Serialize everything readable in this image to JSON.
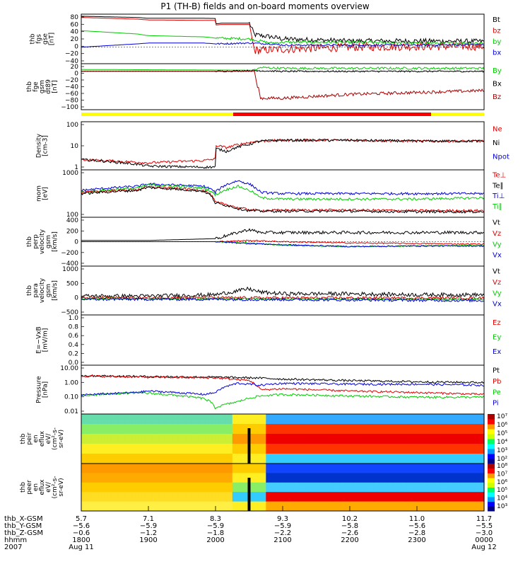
{
  "title": "P1 (TH-B) fields and on-board moments overview",
  "time_axis": {
    "range": [
      1800,
      2400
    ],
    "ticks": [
      1800,
      1900,
      2000,
      2100,
      2200,
      2300,
      2400
    ],
    "rows": [
      {
        "label": "thb_X-GSM",
        "values": [
          "5.7",
          "7.1",
          "8.3",
          "9.3",
          "10.2",
          "11.0",
          "11.7"
        ]
      },
      {
        "label": "thb_Y-GSM",
        "values": [
          "−5.6",
          "−5.9",
          "−5.9",
          "−5.9",
          "−5.8",
          "−5.6",
          "−5.5"
        ]
      },
      {
        "label": "thb_Z-GSM",
        "values": [
          "−0.6",
          "−1.2",
          "−1.8",
          "−2.2",
          "−2.6",
          "−2.8",
          "−3.0"
        ]
      },
      {
        "label": "hhmm",
        "values": [
          "1800",
          "1900",
          "2000",
          "2100",
          "2200",
          "2300",
          "0000"
        ]
      },
      {
        "label": "2007",
        "values": [
          "Aug 11",
          "",
          "",
          "",
          "",
          "",
          "Aug 12"
        ]
      }
    ]
  },
  "colors": {
    "black": "#000000",
    "red": "#e00000",
    "green": "#00cc00",
    "blue": "#0000dd",
    "darkred": "#aa0000",
    "yellow": "#ffff00"
  },
  "chart_data": [
    {
      "type": "line",
      "id": "fgs",
      "ylabel": [
        "thb",
        "fgs",
        "gse",
        "[nT]"
      ],
      "ylim": [
        -40,
        80
      ],
      "ticks": [
        "80",
        "60",
        "40",
        "20",
        "0",
        "−20",
        "−40"
      ],
      "legend": [
        {
          "name": "Bt",
          "color": "#000000"
        },
        {
          "name": "bz",
          "color": "#e00000"
        },
        {
          "name": "by",
          "color": "#00cc00"
        },
        {
          "name": "bx",
          "color": "#0000dd"
        }
      ],
      "series": [
        {
          "name": "Bt",
          "color": "#000000",
          "x": [
            1800,
            1850,
            1900,
            1950,
            1995,
            2005,
            2030,
            2035,
            2050,
            2100,
            2200,
            2300,
            2400
          ],
          "y": [
            75,
            72,
            70,
            70,
            68,
            58,
            58,
            30,
            25,
            20,
            15,
            15,
            14
          ],
          "noise": 6,
          "noise_from": 2030
        },
        {
          "name": "bz",
          "color": "#e00000",
          "x": [
            1800,
            1850,
            1900,
            1950,
            1995,
            2005,
            2030,
            2035,
            2100,
            2200,
            2300,
            2400
          ],
          "y": [
            72,
            68,
            66,
            65,
            64,
            55,
            55,
            -8,
            -5,
            0,
            2,
            2
          ],
          "noise": 10,
          "noise_from": 2035
        },
        {
          "name": "by",
          "color": "#00cc00",
          "x": [
            1800,
            1850,
            1900,
            1950,
            2000,
            2030,
            2050,
            2100,
            2200,
            2300,
            2400
          ],
          "y": [
            40,
            32,
            28,
            25,
            22,
            20,
            10,
            12,
            12,
            10,
            10
          ],
          "noise": 3,
          "noise_from": 2000
        },
        {
          "name": "bx",
          "color": "#0000dd",
          "x": [
            1800,
            1850,
            1900,
            1950,
            2000,
            2030,
            2050,
            2100,
            2200,
            2300,
            2400
          ],
          "y": [
            0,
            8,
            10,
            10,
            8,
            10,
            8,
            5,
            5,
            5,
            6
          ],
          "noise": 2,
          "noise_from": 2000
        }
      ]
    },
    {
      "type": "line",
      "id": "fge",
      "ylabel": [
        "thb",
        "fge",
        "gsm",
        "dt89",
        "[nT]"
      ],
      "ylim": [
        -100,
        20
      ],
      "ticks": [
        "20",
        "0",
        "−20",
        "−40",
        "−60",
        "−80",
        "−100"
      ],
      "legend": [
        {
          "name": "By",
          "color": "#00cc00"
        },
        {
          "name": "Bx",
          "color": "#000000"
        },
        {
          "name": "Bz",
          "color": "#aa0000"
        }
      ],
      "series": [
        {
          "name": "By",
          "color": "#00cc00",
          "x": [
            1800,
            2035,
            2040,
            2100,
            2200,
            2300,
            2400
          ],
          "y": [
            5,
            3,
            10,
            8,
            8,
            8,
            8
          ],
          "noise": 3,
          "noise_from": 2035
        },
        {
          "name": "Bx",
          "color": "#000000",
          "x": [
            1800,
            1900,
            2000,
            2035,
            2100,
            2200,
            2300,
            2400
          ],
          "y": [
            0,
            0,
            0,
            2,
            0,
            0,
            0,
            0
          ],
          "noise": 2,
          "noise_from": 2000
        },
        {
          "name": "Bz",
          "color": "#aa0000",
          "x": [
            1800,
            1900,
            2000,
            2035,
            2040,
            2100,
            2200,
            2300,
            2400
          ],
          "y": [
            0,
            0,
            0,
            0,
            -70,
            -70,
            -60,
            -55,
            -50
          ],
          "noise": 4,
          "noise_from": 2040
        }
      ]
    },
    {
      "type": "line",
      "id": "density",
      "ylabel": [
        "Density",
        "[cm-3]"
      ],
      "yscale": "log",
      "ylim": [
        0.5,
        200
      ],
      "ticks": [
        "100",
        "10",
        "1"
      ],
      "legend": [
        {
          "name": "Ne",
          "color": "#e00000"
        },
        {
          "name": "Ni",
          "color": "#000000"
        },
        {
          "name": "Npot",
          "color": "#0000dd"
        }
      ],
      "series": [
        {
          "name": "Ne",
          "color": "#e00000",
          "x": [
            1800,
            1850,
            1900,
            1950,
            1990,
            2010,
            2030,
            2040,
            2100,
            2200,
            2300,
            2400
          ],
          "y": [
            1.8,
            1.3,
            1.2,
            1.6,
            3,
            8,
            15,
            18,
            20,
            20,
            18,
            18
          ],
          "noise": 0,
          "noise_from": 2400
        },
        {
          "name": "Ni",
          "color": "#000000",
          "x": [
            1800,
            1850,
            1900,
            1950,
            1990,
            2010,
            2030,
            2040,
            2100,
            2200,
            2300,
            2400
          ],
          "y": [
            1.8,
            1.0,
            0.8,
            0.7,
            0.8,
            5,
            12,
            18,
            20,
            20,
            18,
            18
          ],
          "noise": 0,
          "noise_from": 2400
        }
      ]
    },
    {
      "type": "line",
      "id": "temp",
      "ylabel": [
        "mom",
        "[eV]"
      ],
      "yscale": "log",
      "ylim": [
        30,
        12000
      ],
      "ticks": [
        "1000",
        "100"
      ],
      "legend": [
        {
          "name": "Te⊥",
          "color": "#e00000"
        },
        {
          "name": "Te∥",
          "color": "#000000"
        },
        {
          "name": "Ti⊥",
          "color": "#0000dd"
        },
        {
          "name": "Ti∥",
          "color": "#00cc00"
        }
      ],
      "series": [
        {
          "name": "Ti⊥",
          "color": "#0000dd",
          "x": [
            1800,
            1850,
            1900,
            1950,
            2000,
            2020,
            2030,
            2040,
            2100,
            2200,
            2300,
            2400
          ],
          "y": [
            900,
            1500,
            2000,
            1500,
            700,
            3000,
            2000,
            700,
            600,
            600,
            600,
            600
          ],
          "noise": 0,
          "noise_from": 2400
        },
        {
          "name": "Ti∥",
          "color": "#00cc00",
          "x": [
            1800,
            1850,
            1900,
            1950,
            2000,
            2020,
            2030,
            2040,
            2100,
            2200,
            2300,
            2400
          ],
          "y": [
            700,
            1200,
            1800,
            1200,
            500,
            1500,
            900,
            350,
            300,
            300,
            300,
            350
          ],
          "noise": 0,
          "noise_from": 2400
        },
        {
          "name": "Te⊥",
          "color": "#e00000",
          "x": [
            1800,
            1850,
            1900,
            1950,
            2000,
            2020,
            2030,
            2040,
            2100,
            2200,
            2300,
            2400
          ],
          "y": [
            700,
            1000,
            1400,
            900,
            200,
            100,
            80,
            70,
            75,
            75,
            70,
            70
          ],
          "noise": 0,
          "noise_from": 2400
        },
        {
          "name": "Te∥",
          "color": "#000000",
          "x": [
            1800,
            1850,
            1900,
            1950,
            2000,
            2020,
            2030,
            2040,
            2100,
            2200,
            2300,
            2400
          ],
          "y": [
            600,
            900,
            1300,
            800,
            180,
            90,
            70,
            65,
            65,
            65,
            60,
            60
          ],
          "noise": 0,
          "noise_from": 2400
        }
      ]
    },
    {
      "type": "line",
      "id": "velperp",
      "ylabel": [
        "thb",
        "perp",
        "velocity",
        "gsm",
        "[km/s]"
      ],
      "ylim": [
        -400,
        400
      ],
      "ticks": [
        "400",
        "200",
        "0",
        "−200",
        "−400"
      ],
      "legend": [
        {
          "name": "Vt",
          "color": "#000000"
        },
        {
          "name": "Vz",
          "color": "#e00000"
        },
        {
          "name": "Vy",
          "color": "#00cc00"
        },
        {
          "name": "Vx",
          "color": "#0000dd"
        }
      ],
      "series": [
        {
          "name": "Vt",
          "color": "#000000",
          "x": [
            1800,
            1900,
            2000,
            2030,
            2040,
            2100,
            2200,
            2300,
            2400
          ],
          "y": [
            20,
            20,
            50,
            200,
            150,
            150,
            150,
            150,
            150
          ],
          "noise": 25,
          "noise_from": 2000
        },
        {
          "name": "Vz",
          "color": "#e00000",
          "x": [
            1800,
            2000,
            2030,
            2100,
            2200,
            2300,
            2400
          ],
          "y": [
            0,
            0,
            20,
            0,
            -20,
            -30,
            -40
          ],
          "noise": 10,
          "noise_from": 2000
        },
        {
          "name": "Vy",
          "color": "#00cc00",
          "x": [
            1800,
            2000,
            2030,
            2100,
            2200,
            2300,
            2400
          ],
          "y": [
            0,
            0,
            -20,
            -60,
            -80,
            -70,
            -60
          ],
          "noise": 8,
          "noise_from": 2000
        },
        {
          "name": "Vx",
          "color": "#0000dd",
          "x": [
            1800,
            2000,
            2030,
            2100,
            2200,
            2300,
            2400
          ],
          "y": [
            0,
            0,
            -30,
            -50,
            -80,
            -70,
            -70
          ],
          "noise": 10,
          "noise_from": 2000
        }
      ]
    },
    {
      "type": "line",
      "id": "velpara",
      "ylabel": [
        "thb",
        "para",
        "velocity",
        "gsm",
        "[km/s]"
      ],
      "ylim": [
        -500,
        1000
      ],
      "ticks": [
        "1000",
        "500",
        "0",
        "−500"
      ],
      "legend": [
        {
          "name": "Vt",
          "color": "#000000"
        },
        {
          "name": "Vz",
          "color": "#e00000"
        },
        {
          "name": "Vy",
          "color": "#00cc00"
        },
        {
          "name": "Vx",
          "color": "#0000dd"
        }
      ],
      "series": [
        {
          "name": "Vt",
          "color": "#000000",
          "x": [
            1800,
            1900,
            2000,
            2030,
            2040,
            2100,
            2200,
            2300,
            2400
          ],
          "y": [
            80,
            80,
            120,
            300,
            200,
            150,
            150,
            120,
            120
          ],
          "noise": 60,
          "noise_from": 1800
        },
        {
          "name": "Vz",
          "color": "#e00000",
          "x": [
            1800,
            2000,
            2400
          ],
          "y": [
            30,
            30,
            20
          ],
          "noise": 40,
          "noise_from": 1800
        },
        {
          "name": "Vy",
          "color": "#00cc00",
          "x": [
            1800,
            2000,
            2400
          ],
          "y": [
            0,
            0,
            -30
          ],
          "noise": 25,
          "noise_from": 1800
        },
        {
          "name": "Vx",
          "color": "#0000dd",
          "x": [
            1800,
            2000,
            2400
          ],
          "y": [
            -20,
            -20,
            -60
          ],
          "noise": 40,
          "noise_from": 1800
        }
      ]
    },
    {
      "type": "line",
      "id": "efield",
      "ylabel": [
        "E=−VxB",
        "[mV/m]"
      ],
      "ylim": [
        0,
        1
      ],
      "ticks": [
        "1.0",
        "0.8",
        "0.6",
        "0.4",
        "0.2",
        "0.0"
      ],
      "legend": [
        {
          "name": "Ez",
          "color": "#e00000"
        },
        {
          "name": "Ey",
          "color": "#00cc00"
        },
        {
          "name": "Ex",
          "color": "#0000dd"
        }
      ],
      "series": []
    },
    {
      "type": "line",
      "id": "pressure",
      "ylabel": [
        "Pressure",
        "[nPa]"
      ],
      "yscale": "log",
      "ylim": [
        0.008,
        12
      ],
      "ticks": [
        "10.00",
        "1.00",
        "0.10",
        "0.01"
      ],
      "legend": [
        {
          "name": "Pt",
          "color": "#000000"
        },
        {
          "name": "Pb",
          "color": "#e00000"
        },
        {
          "name": "Pe",
          "color": "#00cc00"
        },
        {
          "name": "Pi",
          "color": "#0000dd"
        }
      ],
      "series": [
        {
          "name": "Pt",
          "color": "#000000",
          "x": [
            1800,
            1900,
            2000,
            2035,
            2100,
            2200,
            2300,
            2400
          ],
          "y": [
            2.5,
            2.2,
            2.0,
            1.8,
            1.5,
            1.2,
            1.0,
            0.9
          ],
          "noise": 0,
          "noise_from": 2400
        },
        {
          "name": "Pb",
          "color": "#e00000",
          "x": [
            1800,
            1900,
            2000,
            2030,
            2040,
            2100,
            2200,
            2300,
            2400
          ],
          "y": [
            2.4,
            2.0,
            1.8,
            1.2,
            0.3,
            0.35,
            0.25,
            0.2,
            0.15
          ],
          "noise": 0,
          "noise_from": 2400
        },
        {
          "name": "Pe",
          "color": "#00cc00",
          "x": [
            1800,
            1850,
            1900,
            1950,
            2000,
            2020,
            2040,
            2100,
            2200,
            2300,
            2400
          ],
          "y": [
            0.12,
            0.2,
            0.18,
            0.08,
            0.02,
            0.05,
            0.12,
            0.15,
            0.12,
            0.1,
            0.1
          ],
          "noise": 0,
          "noise_from": 2400
        },
        {
          "name": "Pi",
          "color": "#0000dd",
          "x": [
            1800,
            1850,
            1900,
            1950,
            2000,
            2020,
            2040,
            2100,
            2200,
            2300,
            2400
          ],
          "y": [
            0.14,
            0.2,
            0.25,
            0.15,
            0.2,
            0.8,
            0.6,
            0.8,
            0.7,
            0.7,
            0.6
          ],
          "noise": 0,
          "noise_from": 2400
        }
      ]
    },
    {
      "type": "heatmap",
      "id": "peir",
      "ylabel": [
        "thb",
        "peir",
        "en",
        "eflux",
        "eV/",
        "(cm²-s-",
        "sr-eV)"
      ],
      "yscale": "log",
      "ticks": [
        "10000",
        "1000",
        "100",
        "10"
      ],
      "colorbar_ticks": [
        "10⁷",
        "10⁶",
        "10⁵",
        "10⁴",
        "10³",
        "10²"
      ]
    },
    {
      "type": "heatmap",
      "id": "peer",
      "ylabel": [
        "thb",
        "peer",
        "en",
        "eflux",
        "eV/",
        "(cm²-s-",
        "sr-eV)"
      ],
      "yscale": "log",
      "ticks": [
        "10000",
        "1000",
        "100",
        "10"
      ],
      "colorbar_ticks": [
        "10⁸",
        "10⁷",
        "10⁶",
        "10⁵",
        "10⁴",
        "10³"
      ]
    }
  ]
}
